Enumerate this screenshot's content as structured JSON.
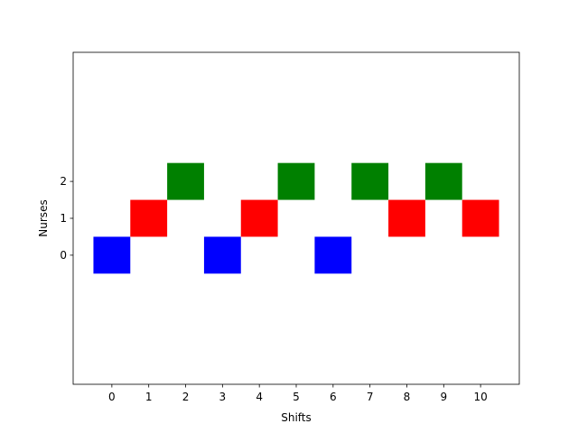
{
  "chart_data": {
    "type": "scatter",
    "marker": "square",
    "x_label": "Shifts",
    "y_label": "Nurses",
    "x": [
      0,
      1,
      2,
      3,
      4,
      5,
      6,
      7,
      8,
      9,
      10
    ],
    "values": [
      0,
      1,
      2,
      0,
      1,
      2,
      0,
      2,
      1,
      2,
      1
    ],
    "colors": [
      "#0000ff",
      "#ff0000",
      "#008000",
      "#0000ff",
      "#ff0000",
      "#008000",
      "#0000ff",
      "#008000",
      "#ff0000",
      "#008000",
      "#ff0000"
    ],
    "xlim": [
      -1.05,
      11.05
    ],
    "ylim": [
      -3.5,
      5.5
    ],
    "xticks": [
      0,
      1,
      2,
      3,
      4,
      5,
      6,
      7,
      8,
      9,
      10
    ],
    "yticks": [
      0,
      1,
      2
    ],
    "grid": false
  }
}
